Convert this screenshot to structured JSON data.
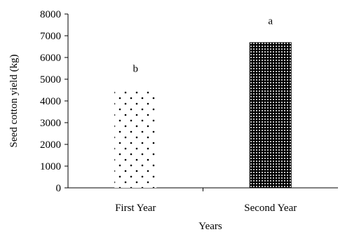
{
  "chart_data": {
    "type": "bar",
    "categories": [
      "First Year",
      "Second Year"
    ],
    "values": [
      4500,
      6700
    ],
    "data_labels": [
      "b",
      "a"
    ],
    "title": "",
    "xlabel": "Years",
    "ylabel": "Seed cotton yield (kg)",
    "ylim": [
      0,
      8000
    ],
    "yticks": [
      0,
      1000,
      2000,
      3000,
      4000,
      5000,
      6000,
      7000,
      8000
    ],
    "grid": false,
    "legend": "none",
    "bar_patterns": [
      "sparse-dots",
      "dense-dots"
    ],
    "colors": {
      "bar_fill_first": "#ffffff",
      "bar_fill_second": "#000000",
      "dots_first": "#000000",
      "dots_second": "#ffffff",
      "axis": "#000000"
    }
  }
}
